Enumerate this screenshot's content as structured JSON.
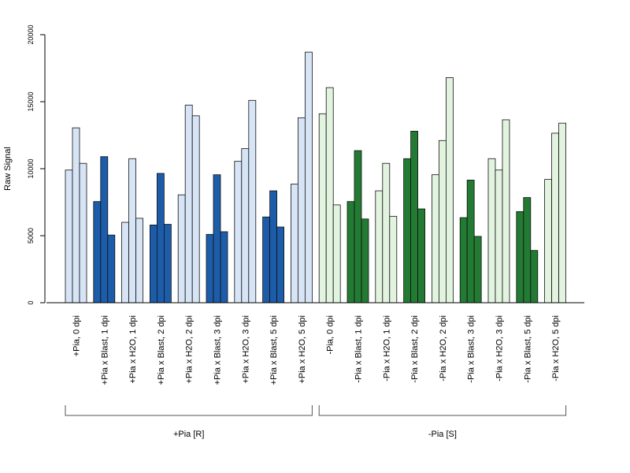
{
  "chart_data": {
    "type": "bar",
    "ylabel": "Raw Signal",
    "ylim": [
      0,
      20000
    ],
    "yticks": [
      0,
      5000,
      10000,
      15000,
      20000
    ],
    "grid": false,
    "categories": [
      "+Pia, 0 dpi",
      "+Pia x Blast, 1 dpi",
      "+Pia x H2O, 1 dpi",
      "+Pia x Blast, 2 dpi",
      "+Pia x H2O, 2 dpi",
      "+Pia x Blast, 3 dpi",
      "+Pia x H2O, 3 dpi",
      "+Pia x Blast, 5 dpi",
      "+Pia x H2O, 5 dpi",
      "-Pia, 0 dpi",
      "-Pia x Blast, 1 dpi",
      "-Pia x H2O, 1 dpi",
      "-Pia x Blast, 2 dpi",
      "-Pia x H2O, 2 dpi",
      "-Pia x Blast, 3 dpi",
      "-Pia x H2O, 3 dpi",
      "-Pia x Blast, 5 dpi",
      "-Pia x H2O, 5 dpi"
    ],
    "replicates_per_category": 3,
    "values": [
      [
        9900,
        13050,
        10400
      ],
      [
        7550,
        10900,
        5050
      ],
      [
        6000,
        10750,
        6300
      ],
      [
        5800,
        9650,
        5850
      ],
      [
        8050,
        14750,
        13950
      ],
      [
        5100,
        9550,
        5300
      ],
      [
        10550,
        11500,
        15100
      ],
      [
        6400,
        8350,
        5650
      ],
      [
        8850,
        13800,
        18700
      ],
      [
        14100,
        16050,
        7300
      ],
      [
        7550,
        11350,
        6250
      ],
      [
        8350,
        10400,
        6450
      ],
      [
        10750,
        12800,
        7000
      ],
      [
        9550,
        12100,
        16800
      ],
      [
        6350,
        9150,
        4950
      ],
      [
        10750,
        9900,
        13650
      ],
      [
        6800,
        7850,
        3900
      ],
      [
        9200,
        12650,
        13400
      ]
    ],
    "colors": {
      "plus_h2o": "#d6e4f6",
      "plus_blast": "#1c5ca8",
      "minus_h2o": "#e2f4df",
      "minus_blast": "#227a33"
    },
    "category_colors": [
      "plus_h2o",
      "plus_blast",
      "plus_h2o",
      "plus_blast",
      "plus_h2o",
      "plus_blast",
      "plus_h2o",
      "plus_blast",
      "plus_h2o",
      "minus_h2o",
      "minus_blast",
      "minus_h2o",
      "minus_blast",
      "minus_h2o",
      "minus_blast",
      "minus_h2o",
      "minus_blast",
      "minus_h2o"
    ],
    "groups": [
      {
        "label": "+Pia [R]",
        "first_category": 0,
        "last_category": 8
      },
      {
        "label": "-Pia [S]",
        "first_category": 9,
        "last_category": 17
      }
    ]
  }
}
